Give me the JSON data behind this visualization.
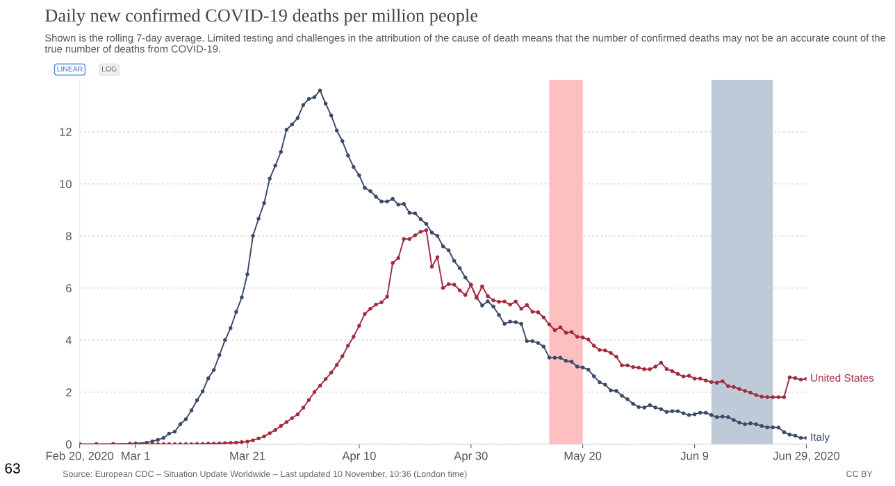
{
  "chart_data": {
    "type": "line",
    "title": "Daily new confirmed COVID-19 deaths per million people",
    "subtitle": "Shown is the rolling 7-day average. Limited testing and challenges in the attribution of the cause of death means that the number of confirmed deaths may not be an accurate count of the true number of deaths from COVID-19.",
    "annotations": [
      "LINEAR",
      "LOG",
      "Source: European CDC – Situation Update Worldwide – Last updated 10 November, 10:36 (London time)",
      "CC BY",
      "63"
    ],
    "x": [
      "2020-02-20",
      "2020-02-23",
      "2020-02-26",
      "2020-02-29",
      "2020-03-01",
      "2020-03-03",
      "2020-03-04",
      "2020-03-05",
      "2020-03-06",
      "2020-03-07",
      "2020-03-08",
      "2020-03-09",
      "2020-03-10",
      "2020-03-11",
      "2020-03-12",
      "2020-03-13",
      "2020-03-14",
      "2020-03-15",
      "2020-03-16",
      "2020-03-17",
      "2020-03-18",
      "2020-03-19",
      "2020-03-20",
      "2020-03-21",
      "2020-03-22",
      "2020-03-23",
      "2020-03-24",
      "2020-03-25",
      "2020-03-26",
      "2020-03-27",
      "2020-03-28",
      "2020-03-29",
      "2020-03-30",
      "2020-03-31",
      "2020-04-01",
      "2020-04-02",
      "2020-04-03",
      "2020-04-04",
      "2020-04-05",
      "2020-04-06",
      "2020-04-07",
      "2020-04-08",
      "2020-04-09",
      "2020-04-10",
      "2020-04-11",
      "2020-04-12",
      "2020-04-13",
      "2020-04-14",
      "2020-04-15",
      "2020-04-16",
      "2020-04-17",
      "2020-04-18",
      "2020-04-19",
      "2020-04-20",
      "2020-04-21",
      "2020-04-22",
      "2020-04-23",
      "2020-04-24",
      "2020-04-25",
      "2020-04-26",
      "2020-04-27",
      "2020-04-28",
      "2020-04-29",
      "2020-04-30",
      "2020-05-01",
      "2020-05-02",
      "2020-05-03",
      "2020-05-04",
      "2020-05-05",
      "2020-05-06",
      "2020-05-07",
      "2020-05-08",
      "2020-05-09",
      "2020-05-10",
      "2020-05-11",
      "2020-05-12",
      "2020-05-13",
      "2020-05-14",
      "2020-05-15",
      "2020-05-16",
      "2020-05-17",
      "2020-05-18",
      "2020-05-19",
      "2020-05-20",
      "2020-05-21",
      "2020-05-22",
      "2020-05-23",
      "2020-05-24",
      "2020-05-25",
      "2020-05-26",
      "2020-05-27",
      "2020-05-28",
      "2020-05-29",
      "2020-05-30",
      "2020-05-31",
      "2020-06-01",
      "2020-06-02",
      "2020-06-03",
      "2020-06-04",
      "2020-06-05",
      "2020-06-06",
      "2020-06-07",
      "2020-06-08",
      "2020-06-09",
      "2020-06-10",
      "2020-06-11",
      "2020-06-12",
      "2020-06-13",
      "2020-06-14",
      "2020-06-15",
      "2020-06-16",
      "2020-06-17",
      "2020-06-18",
      "2020-06-19",
      "2020-06-20",
      "2020-06-21",
      "2020-06-22",
      "2020-06-23",
      "2020-06-24",
      "2020-06-25",
      "2020-06-26",
      "2020-06-27",
      "2020-06-28",
      "2020-06-29"
    ],
    "series": [
      {
        "name": "Italy",
        "color": "#3b4a66",
        "values": [
          0,
          0,
          0.01,
          0.02,
          0.03,
          0.06,
          0.11,
          0.17,
          0.24,
          0.41,
          0.48,
          0.77,
          0.96,
          1.3,
          1.69,
          2.03,
          2.53,
          2.85,
          3.42,
          4.0,
          4.46,
          5.08,
          5.64,
          6.53,
          8.0,
          8.66,
          9.26,
          10.2,
          10.7,
          11.23,
          12.08,
          12.28,
          12.53,
          13.03,
          13.26,
          13.33,
          13.59,
          13.08,
          12.63,
          12.05,
          11.64,
          11.09,
          10.65,
          10.33,
          9.85,
          9.72,
          9.51,
          9.32,
          9.32,
          9.42,
          9.2,
          9.23,
          8.89,
          8.87,
          8.64,
          8.46,
          8.13,
          8.0,
          7.6,
          7.45,
          7.04,
          6.76,
          6.4,
          6.12,
          5.64,
          5.33,
          5.49,
          5.29,
          4.96,
          4.62,
          4.71,
          4.69,
          4.62,
          3.96,
          3.96,
          3.89,
          3.75,
          3.33,
          3.32,
          3.32,
          3.2,
          3.17,
          2.98,
          2.95,
          2.86,
          2.61,
          2.38,
          2.29,
          2.07,
          2.05,
          1.86,
          1.73,
          1.55,
          1.43,
          1.41,
          1.5,
          1.41,
          1.35,
          1.24,
          1.27,
          1.27,
          1.19,
          1.12,
          1.15,
          1.21,
          1.21,
          1.12,
          1.04,
          1.06,
          1.04,
          0.93,
          0.83,
          0.77,
          0.8,
          0.77,
          0.7,
          0.65,
          0.65,
          0.64,
          0.46,
          0.37,
          0.33,
          0.24,
          0.24
        ]
      },
      {
        "name": "United States",
        "color": "#a12c3e",
        "values": [
          0,
          0,
          0,
          0,
          0,
          0,
          0,
          0,
          0,
          0,
          0,
          0,
          0,
          0,
          0.01,
          0.01,
          0.02,
          0.02,
          0.03,
          0.04,
          0.05,
          0.06,
          0.08,
          0.1,
          0.15,
          0.22,
          0.3,
          0.42,
          0.55,
          0.7,
          0.85,
          1.0,
          1.15,
          1.4,
          1.7,
          2.0,
          2.25,
          2.5,
          2.75,
          3.04,
          3.38,
          3.78,
          4.13,
          4.55,
          5.0,
          5.2,
          5.36,
          5.45,
          5.67,
          6.96,
          7.15,
          7.88,
          7.88,
          8.02,
          8.16,
          8.22,
          6.82,
          7.18,
          6.0,
          6.15,
          6.13,
          5.91,
          5.73,
          6.12,
          5.62,
          6.06,
          5.69,
          5.53,
          5.47,
          5.48,
          5.36,
          5.48,
          5.2,
          5.35,
          5.09,
          5.07,
          4.87,
          4.6,
          4.38,
          4.49,
          4.28,
          4.31,
          4.13,
          4.1,
          4.02,
          3.78,
          3.62,
          3.6,
          3.51,
          3.36,
          3.03,
          3.03,
          2.96,
          2.94,
          2.88,
          2.88,
          2.98,
          3.13,
          2.89,
          2.81,
          2.7,
          2.6,
          2.63,
          2.52,
          2.52,
          2.45,
          2.39,
          2.36,
          2.42,
          2.23,
          2.2,
          2.12,
          2.05,
          1.98,
          1.89,
          1.83,
          1.81,
          1.81,
          1.81,
          1.81,
          2.57,
          2.54,
          2.48,
          2.51
        ]
      }
    ],
    "xlim": [
      "2020-02-20",
      "2020-06-29"
    ],
    "xticks": [
      {
        "value": "2020-02-20",
        "label": "Feb 20, 2020"
      },
      {
        "value": "2020-03-01",
        "label": "Mar 1"
      },
      {
        "value": "2020-03-21",
        "label": "Mar 21"
      },
      {
        "value": "2020-04-10",
        "label": "Apr 10"
      },
      {
        "value": "2020-04-30",
        "label": "Apr 30"
      },
      {
        "value": "2020-05-20",
        "label": "May 20"
      },
      {
        "value": "2020-06-09",
        "label": "Jun 9"
      },
      {
        "value": "2020-06-29",
        "label": "Jun 29, 2020"
      }
    ],
    "ylim": [
      0,
      14
    ],
    "yticks": [
      0,
      2,
      4,
      6,
      8,
      10,
      12
    ],
    "bands": [
      {
        "axis": "x",
        "from": "2020-05-14",
        "to": "2020-05-20",
        "color": "#fdbfc0"
      },
      {
        "axis": "x",
        "from": "2020-06-12",
        "to": "2020-06-23",
        "color": "#bfcad9"
      }
    ],
    "grid": "y",
    "marker": "circle",
    "line_style": "solid"
  }
}
